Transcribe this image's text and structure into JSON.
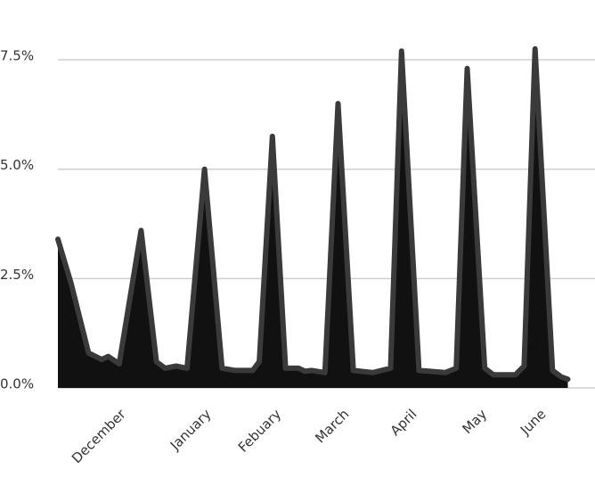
{
  "chart_data": {
    "type": "area",
    "x": [
      0,
      6,
      14,
      20,
      23,
      28,
      38,
      45,
      49,
      54,
      59,
      67,
      75,
      81,
      89,
      92,
      98,
      104,
      110,
      113,
      116,
      122,
      128,
      135,
      144,
      152,
      157,
      165,
      177,
      182,
      187,
      195,
      199,
      203,
      209,
      213,
      218,
      226,
      230,
      233
    ],
    "series": [
      {
        "color": "#111111",
        "line_color": "#3a3a3a",
        "values": [
          3.4,
          2.4,
          0.8,
          0.65,
          0.72,
          0.55,
          3.6,
          0.6,
          0.45,
          0.5,
          0.45,
          5.0,
          0.45,
          0.4,
          0.4,
          0.6,
          5.75,
          0.45,
          0.45,
          0.38,
          0.4,
          0.35,
          6.5,
          0.4,
          0.35,
          0.45,
          7.7,
          0.4,
          0.35,
          0.45,
          7.3,
          0.45,
          0.3,
          0.3,
          0.3,
          0.5,
          7.75,
          0.4,
          0.25,
          0.2
        ]
      }
    ],
    "xlim": [
      0,
      234
    ],
    "xticks": [
      {
        "value": 30,
        "label": "December"
      },
      {
        "value": 69,
        "label": "January"
      },
      {
        "value": 101,
        "label": "Febuary"
      },
      {
        "value": 132,
        "label": "March"
      },
      {
        "value": 163,
        "label": "April"
      },
      {
        "value": 195,
        "label": "May"
      },
      {
        "value": 222,
        "label": "June"
      }
    ],
    "ylim": [
      0,
      8
    ],
    "yticks": [
      {
        "value": 0,
        "label": "0.0%"
      },
      {
        "value": 2.5,
        "label": "2.5%"
      },
      {
        "value": 5,
        "label": "5.0%"
      },
      {
        "value": 7.5,
        "label": "7.5%"
      }
    ],
    "grid": true
  }
}
